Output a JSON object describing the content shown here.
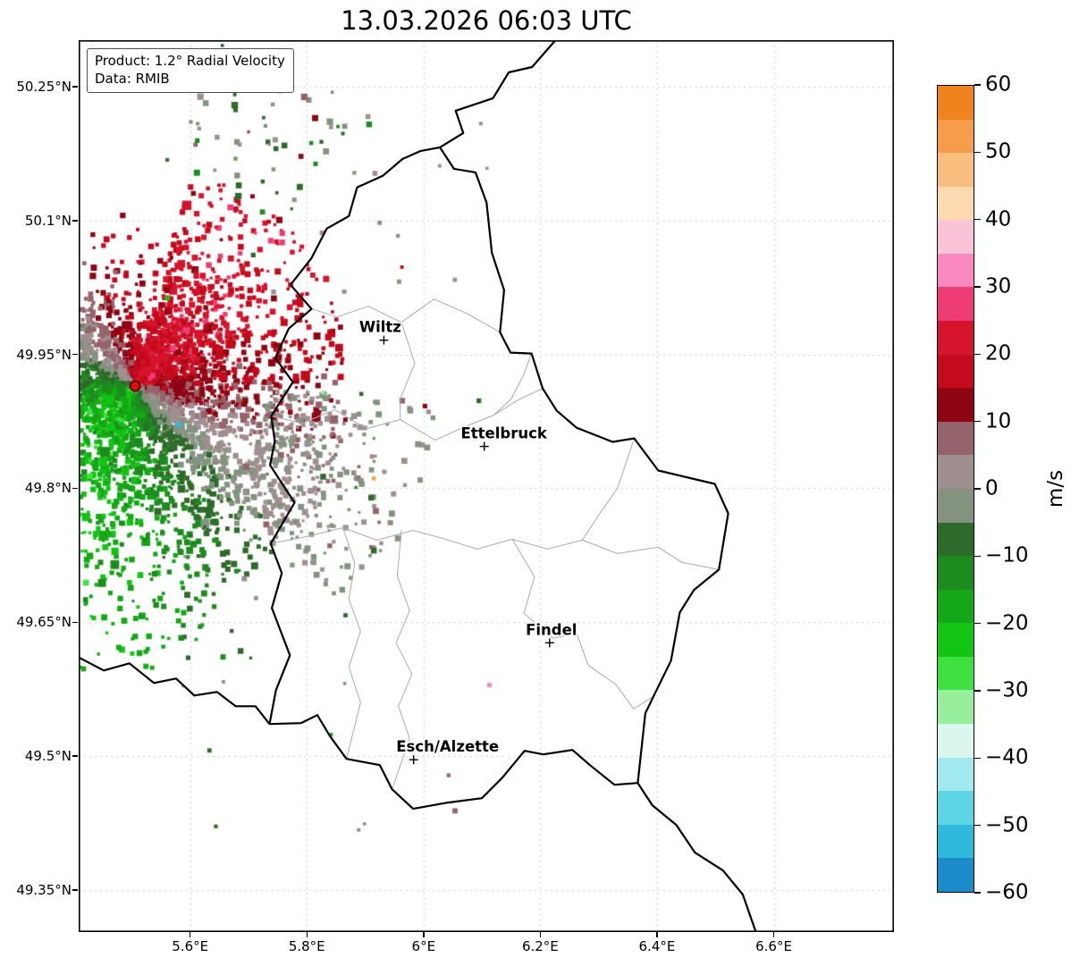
{
  "title": "13.03.2026 06:03 UTC",
  "info_box": {
    "line1": "Product: 1.2° Radial Velocity",
    "line2": "Data: RMIB"
  },
  "axes": {
    "lon_min": 5.409,
    "lon_max": 6.806,
    "lat_min": 49.303,
    "lat_max": 50.302,
    "y_ticks": [
      {
        "label": "50.25°N",
        "lat": 50.25
      },
      {
        "label": "50.1°N",
        "lat": 50.1
      },
      {
        "label": "49.95°N",
        "lat": 49.95
      },
      {
        "label": "49.8°N",
        "lat": 49.8
      },
      {
        "label": "49.65°N",
        "lat": 49.65
      },
      {
        "label": "49.5°N",
        "lat": 49.5
      },
      {
        "label": "49.35°N",
        "lat": 49.35
      }
    ],
    "x_ticks": [
      {
        "label": "5.6°E",
        "lon": 5.6
      },
      {
        "label": "5.8°E",
        "lon": 5.8
      },
      {
        "label": "6°E",
        "lon": 6.0
      },
      {
        "label": "6.2°E",
        "lon": 6.2
      },
      {
        "label": "6.4°E",
        "lon": 6.4
      },
      {
        "label": "6.6°E",
        "lon": 6.6
      }
    ]
  },
  "cities": [
    {
      "name": "Wiltz",
      "lon": 5.932,
      "lat": 49.966,
      "label_dx": -4
    },
    {
      "name": "Ettelbruck",
      "lon": 6.104,
      "lat": 49.847,
      "label_dx": 22
    },
    {
      "name": "Findel",
      "lon": 6.216,
      "lat": 49.627,
      "label_dx": 2
    },
    {
      "name": "Esch/Alzette",
      "lon": 5.983,
      "lat": 49.496,
      "label_dx": 38
    }
  ],
  "radar": {
    "lon": 5.5056,
    "lat": 49.9146,
    "dot_color": "#dd1111",
    "dot_edge_color": "#6d0000"
  },
  "radar_field": {
    "seed": 20260313,
    "wind_toward_azimuth_deg": 38,
    "speed_ms": 21,
    "main_count": 7000,
    "tail_count": 650,
    "ne_count": 120,
    "speck_count": 45
  },
  "colorbar": {
    "label": "m/s",
    "min": -60,
    "max": 60,
    "ticks": [
      {
        "value": 60,
        "label": "60"
      },
      {
        "value": 50,
        "label": "50"
      },
      {
        "value": 40,
        "label": "40"
      },
      {
        "value": 30,
        "label": "30"
      },
      {
        "value": 20,
        "label": "20"
      },
      {
        "value": 10,
        "label": "10"
      },
      {
        "value": 0,
        "label": "0"
      },
      {
        "value": -10,
        "label": "−10"
      },
      {
        "value": -20,
        "label": "−20"
      },
      {
        "value": -30,
        "label": "−30"
      },
      {
        "value": -40,
        "label": "−40"
      },
      {
        "value": -50,
        "label": "−50"
      },
      {
        "value": -60,
        "label": "−60"
      }
    ],
    "colors_top_to_bottom": [
      "#f0831e",
      "#f59d4a",
      "#f9bd7e",
      "#fcd9ae",
      "#fbc3d7",
      "#f888bd",
      "#ee3d74",
      "#d5152c",
      "#c30b1d",
      "#8f0513",
      "#95646b",
      "#a08f91",
      "#83937f",
      "#2e6b2a",
      "#1d8c1e",
      "#15a816",
      "#12c513",
      "#3fe140",
      "#97ef9b",
      "#d9f7ec",
      "#9fe9ef",
      "#5ed5e6",
      "#2fb9dd",
      "#1b8cc7"
    ]
  },
  "map": {
    "border_color": "#000000",
    "canton_color": "#ababab",
    "grid_color": "#cccccc",
    "country_border": [
      [
        5.995,
        50.178
      ],
      [
        6.028,
        50.182
      ],
      [
        6.052,
        50.158
      ],
      [
        6.089,
        50.154
      ],
      [
        6.108,
        50.12
      ],
      [
        6.117,
        50.064
      ],
      [
        6.138,
        50.022
      ],
      [
        6.131,
        49.975
      ],
      [
        6.149,
        49.952
      ],
      [
        6.185,
        49.951
      ],
      [
        6.204,
        49.912
      ],
      [
        6.228,
        49.887
      ],
      [
        6.262,
        49.868
      ],
      [
        6.324,
        49.852
      ],
      [
        6.361,
        49.856
      ],
      [
        6.402,
        49.82
      ],
      [
        6.46,
        49.811
      ],
      [
        6.499,
        49.805
      ],
      [
        6.522,
        49.772
      ],
      [
        6.506,
        49.709
      ],
      [
        6.463,
        49.686
      ],
      [
        6.439,
        49.661
      ],
      [
        6.424,
        49.607
      ],
      [
        6.394,
        49.567
      ],
      [
        6.38,
        49.548
      ],
      [
        6.367,
        49.47
      ],
      [
        6.327,
        49.468
      ],
      [
        6.285,
        49.49
      ],
      [
        6.255,
        49.507
      ],
      [
        6.205,
        49.502
      ],
      [
        6.173,
        49.506
      ],
      [
        6.135,
        49.476
      ],
      [
        6.1,
        49.453
      ],
      [
        6.042,
        49.448
      ],
      [
        5.982,
        49.441
      ],
      [
        5.946,
        49.463
      ],
      [
        5.925,
        49.49
      ],
      [
        5.868,
        49.497
      ],
      [
        5.839,
        49.523
      ],
      [
        5.818,
        49.546
      ],
      [
        5.79,
        49.537
      ],
      [
        5.736,
        49.536
      ],
      [
        5.747,
        49.574
      ],
      [
        5.771,
        49.613
      ],
      [
        5.74,
        49.666
      ],
      [
        5.757,
        49.705
      ],
      [
        5.738,
        49.738
      ],
      [
        5.779,
        49.784
      ],
      [
        5.737,
        49.826
      ],
      [
        5.745,
        49.853
      ],
      [
        5.739,
        49.881
      ],
      [
        5.776,
        49.919
      ],
      [
        5.746,
        49.946
      ],
      [
        5.769,
        49.979
      ],
      [
        5.808,
        50.001
      ],
      [
        5.772,
        50.028
      ],
      [
        5.808,
        50.058
      ],
      [
        5.834,
        50.091
      ],
      [
        5.872,
        50.105
      ],
      [
        5.886,
        50.137
      ],
      [
        5.93,
        50.15
      ],
      [
        5.964,
        50.169
      ],
      [
        5.995,
        50.178
      ]
    ],
    "be_de_border": [
      [
        6.028,
        50.182
      ],
      [
        6.068,
        50.198
      ],
      [
        6.055,
        50.223
      ],
      [
        6.119,
        50.237
      ],
      [
        6.146,
        50.266
      ],
      [
        6.186,
        50.272
      ],
      [
        6.226,
        50.302
      ]
    ],
    "fr_be_border": [
      [
        5.405,
        49.612
      ],
      [
        5.452,
        49.596
      ],
      [
        5.496,
        49.604
      ],
      [
        5.538,
        49.582
      ],
      [
        5.576,
        49.587
      ],
      [
        5.607,
        49.568
      ],
      [
        5.646,
        49.572
      ],
      [
        5.678,
        49.556
      ],
      [
        5.712,
        49.556
      ],
      [
        5.736,
        49.536
      ]
    ],
    "fr_de_border": [
      [
        6.367,
        49.47
      ],
      [
        6.392,
        49.445
      ],
      [
        6.433,
        49.423
      ],
      [
        6.465,
        49.392
      ],
      [
        6.513,
        49.372
      ],
      [
        6.547,
        49.345
      ],
      [
        6.57,
        49.302
      ]
    ],
    "canton_lines": [
      [
        [
          5.808,
          50.001
        ],
        [
          5.852,
          49.992
        ],
        [
          5.905,
          50.004
        ],
        [
          5.962,
          49.986
        ],
        [
          6.018,
          50.012
        ],
        [
          6.074,
          49.996
        ],
        [
          6.131,
          49.975
        ]
      ],
      [
        [
          5.739,
          49.881
        ],
        [
          5.792,
          49.873
        ],
        [
          5.848,
          49.888
        ],
        [
          5.902,
          49.867
        ],
        [
          5.96,
          49.877
        ],
        [
          6.02,
          49.854
        ],
        [
          6.07,
          49.869
        ],
        [
          6.12,
          49.882
        ],
        [
          6.162,
          49.899
        ],
        [
          6.204,
          49.912
        ]
      ],
      [
        [
          5.738,
          49.738
        ],
        [
          5.8,
          49.746
        ],
        [
          5.862,
          49.756
        ],
        [
          5.92,
          49.742
        ],
        [
          5.982,
          49.753
        ],
        [
          6.032,
          49.744
        ],
        [
          6.092,
          49.732
        ],
        [
          6.152,
          49.743
        ],
        [
          6.212,
          49.732
        ],
        [
          6.272,
          49.742
        ],
        [
          6.332,
          49.727
        ],
        [
          6.402,
          49.734
        ],
        [
          6.443,
          49.717
        ],
        [
          6.506,
          49.709
        ]
      ],
      [
        [
          5.962,
          49.753
        ],
        [
          5.955,
          49.702
        ],
        [
          5.976,
          49.663
        ],
        [
          5.953,
          49.627
        ],
        [
          5.98,
          49.592
        ],
        [
          5.957,
          49.556
        ],
        [
          5.976,
          49.52
        ],
        [
          5.946,
          49.463
        ]
      ],
      [
        [
          6.152,
          49.743
        ],
        [
          6.19,
          49.701
        ],
        [
          6.172,
          49.66
        ],
        [
          6.222,
          49.632
        ],
        [
          6.262,
          49.638
        ],
        [
          6.282,
          49.602
        ],
        [
          6.33,
          49.58
        ],
        [
          6.36,
          49.553
        ],
        [
          6.394,
          49.567
        ]
      ],
      [
        [
          6.272,
          49.742
        ],
        [
          6.302,
          49.772
        ],
        [
          6.332,
          49.8
        ],
        [
          6.361,
          49.856
        ]
      ],
      [
        [
          5.862,
          49.756
        ],
        [
          5.882,
          49.716
        ],
        [
          5.872,
          49.676
        ],
        [
          5.892,
          49.64
        ],
        [
          5.872,
          49.6
        ],
        [
          5.892,
          49.56
        ],
        [
          5.868,
          49.497
        ]
      ],
      [
        [
          6.12,
          49.882
        ],
        [
          6.15,
          49.9
        ],
        [
          6.17,
          49.925
        ],
        [
          6.185,
          49.951
        ]
      ],
      [
        [
          5.962,
          49.986
        ],
        [
          5.985,
          49.94
        ],
        [
          5.96,
          49.9
        ],
        [
          5.96,
          49.877
        ]
      ]
    ]
  }
}
